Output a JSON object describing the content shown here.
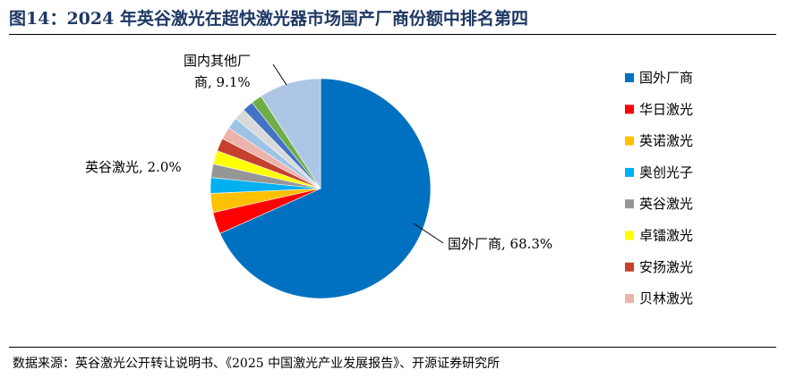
{
  "title": "图14：2024 年英谷激光在超快激光器市场国产厂商份额中排名第四",
  "source": "数据来源：英谷激光公开转让说明书、《2025 中国激光产业发展报告》、开源证券研究所",
  "chart_data": {
    "type": "pie",
    "title": "2024 年英谷激光在超快激光器市场国产厂商份额中排名第四",
    "unit": "%",
    "legend_position": "right",
    "slices": [
      {
        "name": "国外厂商",
        "value": 68.3,
        "color": "#0070c0",
        "label": "国外厂商, 68.3%"
      },
      {
        "name": "华日激光",
        "value": 3.2,
        "color": "#ff0000"
      },
      {
        "name": "英诺激光",
        "value": 2.8,
        "color": "#ffc000"
      },
      {
        "name": "奥创光子",
        "value": 2.3,
        "color": "#00b0f0"
      },
      {
        "name": "英谷激光",
        "value": 2.0,
        "color": "#969696",
        "label": "英谷激光, 2.0%"
      },
      {
        "name": "卓镭激光",
        "value": 2.0,
        "color": "#ffff00"
      },
      {
        "name": "安扬激光",
        "value": 1.9,
        "color": "#c5402f"
      },
      {
        "name": "贝林激光",
        "value": 1.8,
        "color": "#ecb3ad"
      },
      {
        "name": "",
        "value": 1.7,
        "color": "#9dc3e6"
      },
      {
        "name": "",
        "value": 1.7,
        "color": "#d9d9d9"
      },
      {
        "name": "",
        "value": 1.6,
        "color": "#4472c4"
      },
      {
        "name": "",
        "value": 1.6,
        "color": "#70ad47"
      },
      {
        "name": "国内其他厂商",
        "value": 9.1,
        "color": "#adc6e5",
        "label_line1": "国内其他厂",
        "label_line2": "商, 9.1%"
      }
    ]
  }
}
